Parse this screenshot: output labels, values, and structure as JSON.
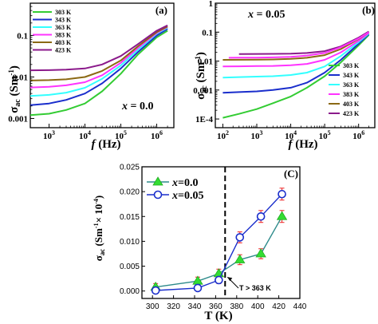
{
  "chart_data": [
    {
      "type": "line",
      "panel_label": "(a)",
      "annotation": "x = 0.0",
      "xlabel": "f (Hz)",
      "ylabel": "σac (Sm⁻¹)",
      "xscale": "log",
      "yscale": "log",
      "xlim": [
        300,
        3000000
      ],
      "ylim": [
        0.0006,
        0.6
      ],
      "xticks": [
        {
          "v": 1000,
          "label": "10³"
        },
        {
          "v": 10000,
          "label": "10⁴"
        },
        {
          "v": 100000,
          "label": "10⁵"
        },
        {
          "v": 1000000,
          "label": "10⁶"
        }
      ],
      "yticks": [
        {
          "v": 0.001,
          "label": "0.001"
        },
        {
          "v": 0.01,
          "label": "0.01"
        },
        {
          "v": 0.1,
          "label": "0.1"
        }
      ],
      "legend_position": "top-left",
      "series": [
        {
          "name": "303 K",
          "color": "#33cc33",
          "x": [
            300,
            1000,
            3000,
            10000,
            30000,
            100000,
            300000,
            1000000,
            2000000
          ],
          "y": [
            0.0012,
            0.0013,
            0.0016,
            0.0023,
            0.0045,
            0.012,
            0.035,
            0.09,
            0.13
          ]
        },
        {
          "name": "343 K",
          "color": "#1a2ecc",
          "x": [
            300,
            1000,
            3000,
            10000,
            30000,
            100000,
            300000,
            1000000,
            2000000
          ],
          "y": [
            0.0021,
            0.0023,
            0.0028,
            0.004,
            0.007,
            0.016,
            0.04,
            0.1,
            0.145
          ]
        },
        {
          "name": "363 K",
          "color": "#33ffff",
          "x": [
            300,
            1000,
            3000,
            10000,
            30000,
            100000,
            300000,
            1000000,
            2000000
          ],
          "y": [
            0.0035,
            0.0037,
            0.0042,
            0.0055,
            0.009,
            0.019,
            0.045,
            0.11,
            0.155
          ]
        },
        {
          "name": "383 K",
          "color": "#ff33ff",
          "x": [
            300,
            1000,
            3000,
            10000,
            30000,
            100000,
            300000,
            1000000,
            2000000
          ],
          "y": [
            0.0056,
            0.0058,
            0.0063,
            0.0075,
            0.011,
            0.022,
            0.05,
            0.115,
            0.16
          ]
        },
        {
          "name": "403 K",
          "color": "#8b6914",
          "x": [
            300,
            1000,
            3000,
            10000,
            30000,
            100000,
            300000,
            1000000,
            2000000
          ],
          "y": [
            0.0082,
            0.0084,
            0.0088,
            0.01,
            0.014,
            0.025,
            0.055,
            0.12,
            0.165
          ]
        },
        {
          "name": "423 K",
          "color": "#8b1a8b",
          "x": [
            300,
            1000,
            3000,
            10000,
            30000,
            100000,
            300000,
            1000000,
            2000000
          ],
          "y": [
            0.0145,
            0.0146,
            0.015,
            0.016,
            0.02,
            0.032,
            0.062,
            0.13,
            0.175
          ]
        }
      ]
    },
    {
      "type": "line",
      "panel_label": "(b)",
      "annotation": "x = 0.05",
      "xlabel": "f (Hz)",
      "ylabel": "σac (Sm⁻¹)",
      "xscale": "log",
      "yscale": "log",
      "xlim": [
        60,
        3000000
      ],
      "ylim": [
        5e-05,
        1
      ],
      "xticks": [
        {
          "v": 100,
          "label": "10²"
        },
        {
          "v": 1000,
          "label": "10³"
        },
        {
          "v": 10000,
          "label": "10⁴"
        },
        {
          "v": 100000,
          "label": "10⁵"
        },
        {
          "v": 1000000,
          "label": "10⁶"
        }
      ],
      "yticks": [
        {
          "v": 0.0001,
          "label": "1E-4"
        },
        {
          "v": 0.001,
          "label": "0.001"
        },
        {
          "v": 0.01,
          "label": "0.01"
        },
        {
          "v": 0.1,
          "label": "0.1"
        },
        {
          "v": 1,
          "label": "1"
        }
      ],
      "legend_position": "bottom-right",
      "series": [
        {
          "name": "303 K",
          "color": "#33cc33",
          "x": [
            100,
            300,
            1000,
            3000,
            10000,
            30000,
            100000,
            300000,
            1000000,
            2000000
          ],
          "y": [
            0.00011,
            0.00015,
            0.00022,
            0.00035,
            0.0006,
            0.0012,
            0.003,
            0.009,
            0.035,
            0.08
          ]
        },
        {
          "name": "343 K",
          "color": "#1a2ecc",
          "x": [
            100,
            300,
            1000,
            3000,
            10000,
            30000,
            100000,
            300000,
            1000000,
            2000000
          ],
          "y": [
            0.0008,
            0.00085,
            0.0009,
            0.001,
            0.0012,
            0.0018,
            0.004,
            0.011,
            0.04,
            0.085
          ]
        },
        {
          "name": "363 K",
          "color": "#33ffff",
          "x": [
            100,
            300,
            1000,
            3000,
            10000,
            30000,
            100000,
            300000,
            1000000,
            2000000
          ],
          "y": [
            0.0027,
            0.0028,
            0.0029,
            0.003,
            0.0033,
            0.004,
            0.0065,
            0.015,
            0.045,
            0.09
          ]
        },
        {
          "name": "383 K",
          "color": "#ff33ff",
          "x": [
            100,
            300,
            1000,
            3000,
            10000,
            30000,
            100000,
            300000,
            1000000,
            2000000
          ],
          "y": [
            0.0065,
            0.0066,
            0.0067,
            0.0068,
            0.0072,
            0.008,
            0.011,
            0.02,
            0.05,
            0.095
          ]
        },
        {
          "name": "403 K",
          "color": "#8b6914",
          "x": [
            100,
            300,
            1000,
            3000,
            10000,
            30000,
            100000,
            300000,
            1000000,
            2000000
          ],
          "y": [
            0.011,
            0.0111,
            0.0112,
            0.0114,
            0.012,
            0.013,
            0.016,
            0.026,
            0.058,
            0.1
          ]
        },
        {
          "name": "423 K",
          "color": "#8b1a8b",
          "x": [
            300,
            1000,
            3000,
            10000,
            30000,
            100000,
            300000,
            1000000,
            2000000
          ],
          "y": [
            0.0175,
            0.0176,
            0.0178,
            0.018,
            0.019,
            0.022,
            0.032,
            0.065,
            0.105
          ]
        },
        {
          "name": "",
          "color": "#ff33ff",
          "x": [
            150,
            300,
            1000,
            3000,
            10000,
            30000,
            100000,
            300000,
            1000000,
            2000000
          ],
          "y": [
            0.013,
            0.0131,
            0.0132,
            0.0134,
            0.014,
            0.0155,
            0.019,
            0.03,
            0.06,
            0.1
          ]
        }
      ]
    },
    {
      "type": "line",
      "panel_label": "(C)",
      "xlabel": "T (K)",
      "ylabel": "σac (Sm⁻¹× 10⁻⁴)",
      "xlim": [
        290,
        440
      ],
      "ylim": [
        -0.0015,
        0.025
      ],
      "xticks": [
        300,
        320,
        340,
        360,
        380,
        400,
        420,
        440
      ],
      "yticks": [
        0.0,
        0.005,
        0.01,
        0.015,
        0.02,
        0.025
      ],
      "ytick_labels": [
        "0.000",
        "0.005",
        "0.010",
        "0.015",
        "0.020",
        "0.025"
      ],
      "legend_position": "top-left",
      "vline_x": 369,
      "annotation": "T > 363 K",
      "series": [
        {
          "name": "x=0.0",
          "marker": "triangle",
          "color": "#2e8b8b",
          "marker_fill": "#33dd33",
          "x": [
            303,
            343,
            363,
            383,
            403,
            423
          ],
          "y": [
            0.0008,
            0.002,
            0.0035,
            0.0063,
            0.0075,
            0.015
          ],
          "err": [
            0.0007,
            0.0008,
            0.0009,
            0.001,
            0.001,
            0.0012
          ]
        },
        {
          "name": "x=0.05",
          "marker": "circle",
          "color": "#1a2ecc",
          "marker_fill": "#ffffff",
          "x": [
            303,
            343,
            363,
            383,
            403,
            423
          ],
          "y": [
            0.0001,
            0.0006,
            0.0022,
            0.0108,
            0.015,
            0.0195
          ],
          "err": [
            0.0006,
            0.0006,
            0.0007,
            0.0011,
            0.0012,
            0.0012
          ]
        }
      ]
    }
  ]
}
